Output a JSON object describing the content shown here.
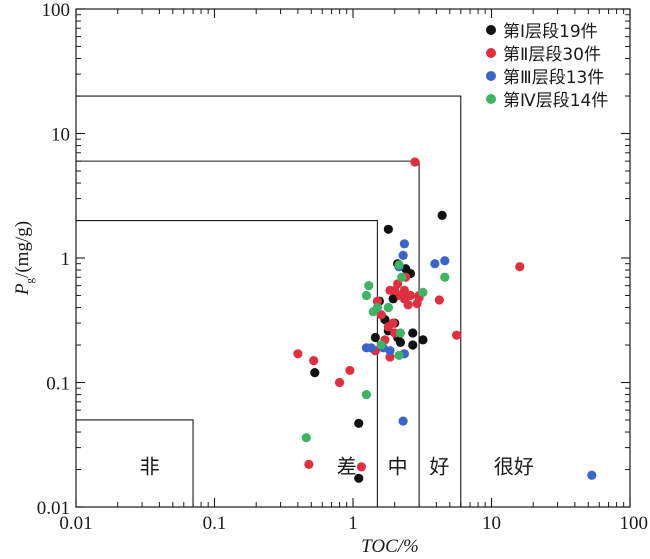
{
  "chart_data": {
    "type": "scatter",
    "x_scale": "log",
    "y_scale": "log",
    "xlim": [
      0.01,
      100
    ],
    "ylim": [
      0.01,
      100
    ],
    "xlabel": "TOC/%",
    "ylabel_main": "P",
    "ylabel_sub": "g",
    "ylabel_rest": "/(mg/g)",
    "x_ticks": [
      {
        "value": 0.01,
        "label": "0.01"
      },
      {
        "value": 0.1,
        "label": "0.1"
      },
      {
        "value": 1,
        "label": "1"
      },
      {
        "value": 10,
        "label": "10"
      },
      {
        "value": 100,
        "label": "100"
      }
    ],
    "y_ticks": [
      {
        "value": 0.01,
        "label": "0.01"
      },
      {
        "value": 0.1,
        "label": "0.1"
      },
      {
        "value": 1,
        "label": "1"
      },
      {
        "value": 10,
        "label": "10"
      },
      {
        "value": 100,
        "label": "100"
      }
    ],
    "grid": false,
    "legend_position": "top-right",
    "class_boundaries": [
      {
        "toc": 0.07,
        "pg": 0.05
      },
      {
        "toc": 1.5,
        "pg": 2
      },
      {
        "toc": 3.0,
        "pg": 6
      },
      {
        "toc": 6.0,
        "pg": 20
      }
    ],
    "class_labels": [
      {
        "text": "非",
        "toc": 0.034,
        "pg": 0.0185
      },
      {
        "text": "差",
        "toc": 0.9,
        "pg": 0.0185
      },
      {
        "text": "中",
        "toc": 2.1,
        "pg": 0.0185
      },
      {
        "text": "好",
        "toc": 4.2,
        "pg": 0.0185
      },
      {
        "text": "很好",
        "toc": 14.5,
        "pg": 0.0185
      }
    ],
    "series": [
      {
        "name": "第Ⅰ层段19件",
        "color": "#111111",
        "points": [
          [
            4.4,
            2.2
          ],
          [
            1.8,
            1.7
          ],
          [
            2.1,
            0.9
          ],
          [
            2.4,
            0.82
          ],
          [
            2.6,
            0.75
          ],
          [
            1.55,
            0.45
          ],
          [
            1.95,
            0.47
          ],
          [
            1.7,
            0.32
          ],
          [
            1.8,
            0.26
          ],
          [
            2.1,
            0.23
          ],
          [
            1.45,
            0.23
          ],
          [
            2.7,
            0.25
          ],
          [
            3.2,
            0.22
          ],
          [
            2.2,
            0.21
          ],
          [
            2.7,
            0.2
          ],
          [
            0.53,
            0.12
          ],
          [
            1.1,
            0.047
          ],
          [
            1.1,
            0.017
          ],
          [
            2.0,
            0.3
          ]
        ]
      },
      {
        "name": "第Ⅱ层段30件",
        "color": "#e03040",
        "points": [
          [
            2.8,
            5.9
          ],
          [
            16.0,
            0.85
          ],
          [
            1.5,
            0.45
          ],
          [
            2.0,
            0.55
          ],
          [
            2.2,
            0.5
          ],
          [
            2.6,
            0.5
          ],
          [
            3.0,
            0.48
          ],
          [
            2.5,
            0.42
          ],
          [
            2.9,
            0.43
          ],
          [
            4.2,
            0.46
          ],
          [
            3.0,
            0.5
          ],
          [
            1.85,
            0.55
          ],
          [
            2.35,
            0.47
          ],
          [
            1.95,
            0.3
          ],
          [
            1.7,
            0.22
          ],
          [
            5.6,
            0.24
          ],
          [
            2.0,
            0.25
          ],
          [
            1.45,
            0.18
          ],
          [
            1.85,
            0.16
          ],
          [
            0.4,
            0.17
          ],
          [
            0.52,
            0.15
          ],
          [
            0.95,
            0.125
          ],
          [
            0.8,
            0.1
          ],
          [
            0.48,
            0.022
          ],
          [
            1.15,
            0.021
          ],
          [
            2.35,
            0.55
          ],
          [
            1.6,
            0.35
          ],
          [
            2.4,
            0.7
          ],
          [
            1.8,
            0.28
          ],
          [
            2.1,
            0.62
          ]
        ]
      },
      {
        "name": "第Ⅲ层段13件",
        "color": "#3a64c8",
        "points": [
          [
            2.35,
            1.3
          ],
          [
            2.3,
            1.05
          ],
          [
            4.6,
            0.95
          ],
          [
            3.9,
            0.9
          ],
          [
            2.15,
            0.85
          ],
          [
            1.25,
            0.19
          ],
          [
            1.35,
            0.19
          ],
          [
            1.65,
            0.19
          ],
          [
            1.85,
            0.18
          ],
          [
            2.35,
            0.17
          ],
          [
            2.3,
            0.049
          ],
          [
            53.0,
            0.018
          ],
          [
            1.8,
            0.4
          ]
        ]
      },
      {
        "name": "第Ⅳ层段14件",
        "color": "#3cb464",
        "points": [
          [
            2.15,
            0.88
          ],
          [
            2.25,
            0.7
          ],
          [
            4.6,
            0.7
          ],
          [
            1.3,
            0.6
          ],
          [
            3.2,
            0.53
          ],
          [
            1.25,
            0.5
          ],
          [
            1.5,
            0.4
          ],
          [
            1.8,
            0.4
          ],
          [
            1.4,
            0.37
          ],
          [
            2.2,
            0.25
          ],
          [
            1.6,
            0.2
          ],
          [
            2.15,
            0.165
          ],
          [
            1.25,
            0.08
          ],
          [
            0.46,
            0.036
          ]
        ]
      }
    ]
  }
}
